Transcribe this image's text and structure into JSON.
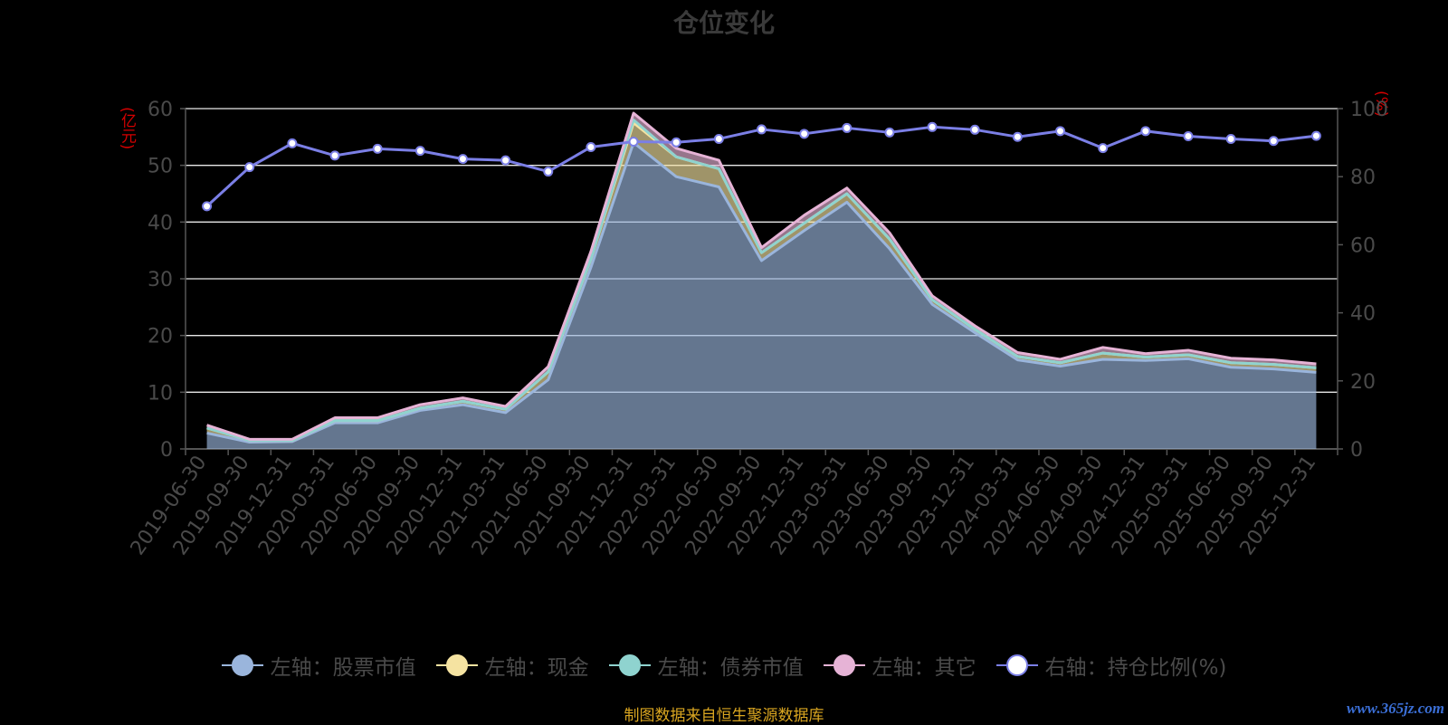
{
  "title": "仓位变化",
  "left_axis_unit": "(亿元)",
  "right_axis_unit": "(%)",
  "source_note": "制图数据来自恒生聚源数据库",
  "watermark": "www.365jz.com",
  "legend": [
    {
      "label": "左轴：股票市值",
      "color": "#9ab5dc",
      "fill": "#9ab5dc"
    },
    {
      "label": "左轴：现金",
      "color": "#f5e3a1",
      "fill": "#f5e3a1"
    },
    {
      "label": "左轴：债券市值",
      "color": "#8fd3cf",
      "fill": "#8fd3cf"
    },
    {
      "label": "左轴：其它",
      "color": "#e6b3d6",
      "fill": "#e6b3d6"
    },
    {
      "label": "右轴：持仓比例(%)",
      "color": "#7b7fe6",
      "fill": "#ffffff"
    }
  ],
  "chart_data": {
    "type": "area",
    "stacked": true,
    "x": [
      "2019-06-30",
      "2019-09-30",
      "2019-12-31",
      "2020-03-31",
      "2020-06-30",
      "2020-09-30",
      "2020-12-31",
      "2021-03-31",
      "2021-06-30",
      "2021-09-30",
      "2021-12-31",
      "2022-03-31",
      "2022-06-30",
      "2022-09-30",
      "2022-12-31",
      "2023-03-31",
      "2023-06-30",
      "2023-09-30",
      "2023-12-31",
      "2024-03-31",
      "2024-06-30",
      "2024-09-30",
      "2024-12-31",
      "2025-03-31",
      "2025-06-30",
      "2025-09-30",
      "2025-12-31"
    ],
    "left_axis": {
      "min": 0,
      "max": 60,
      "ticks": [
        0,
        10,
        20,
        30,
        40,
        50,
        60
      ]
    },
    "right_axis": {
      "min": 0,
      "max": 100,
      "ticks": [
        0,
        20,
        40,
        60,
        80,
        100
      ]
    },
    "series": [
      {
        "name": "左轴：股票市值",
        "axis": "left",
        "color": "#9ab5dc",
        "values": [
          2.8,
          1.2,
          1.3,
          4.6,
          4.6,
          6.8,
          7.8,
          6.4,
          12.2,
          32,
          54,
          48,
          46.2,
          33.2,
          38.5,
          43.5,
          35.3,
          25.5,
          20.5,
          15.7,
          14.6,
          15.8,
          15.6,
          15.9,
          14.4,
          14.1,
          13.5
        ]
      },
      {
        "name": "左轴：现金",
        "axis": "left",
        "color": "#f5e3a1",
        "values": [
          0.9,
          0.3,
          0.2,
          0.4,
          0.4,
          0.4,
          0.6,
          0.6,
          1.4,
          1.5,
          3.5,
          3.5,
          3.2,
          1.4,
          1.3,
          1.5,
          1.7,
          0.8,
          0.6,
          0.6,
          0.6,
          1.1,
          0.6,
          0.7,
          0.8,
          0.8,
          0.8
        ]
      },
      {
        "name": "左轴：债券市值",
        "axis": "left",
        "color": "#8fd3cf",
        "values": [
          0,
          0,
          0,
          0,
          0,
          0,
          0,
          0,
          0,
          0,
          0.5,
          0,
          0,
          0,
          0,
          0,
          0,
          0,
          0,
          0,
          0,
          0,
          0,
          0,
          0,
          0,
          0
        ]
      },
      {
        "name": "左轴：其它",
        "axis": "left",
        "color": "#e6b3d6",
        "values": [
          0.5,
          0.2,
          0.2,
          0.5,
          0.5,
          0.6,
          0.6,
          0.5,
          0.9,
          1.3,
          1.2,
          1.5,
          1.5,
          0.9,
          1.4,
          1.0,
          1.1,
          0.7,
          0.6,
          0.7,
          0.6,
          1.0,
          0.6,
          0.8,
          0.8,
          0.8,
          0.7
        ]
      },
      {
        "name": "右轴：持仓比例(%)",
        "axis": "right",
        "color": "#7b7fe6",
        "values": [
          71.3,
          82.8,
          89.8,
          86.2,
          88.2,
          87.6,
          85.2,
          84.8,
          81.5,
          88.7,
          90.3,
          90.1,
          91.1,
          93.9,
          92.6,
          94.3,
          93.0,
          94.6,
          93.8,
          91.7,
          93.4,
          88.4,
          93.4,
          91.9,
          91.1,
          90.5,
          92.0
        ]
      }
    ],
    "grid": true,
    "legend_position": "bottom"
  }
}
